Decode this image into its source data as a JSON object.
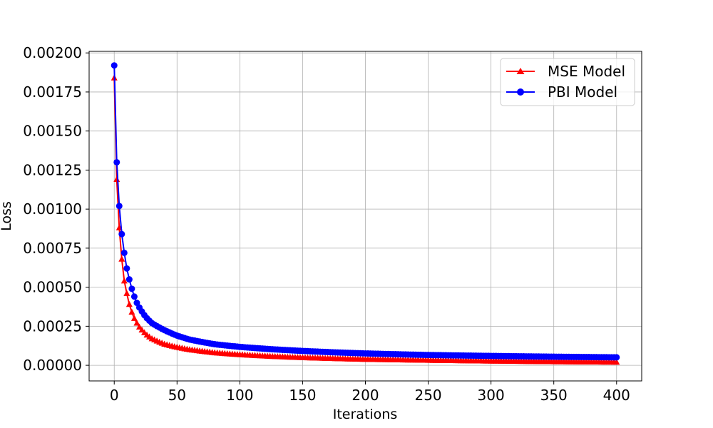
{
  "chart_data": {
    "type": "line",
    "title": "",
    "xlabel": "Iterations",
    "ylabel": "Loss",
    "xlim": [
      -20,
      420
    ],
    "ylim": [
      -0.0001,
      0.00201
    ],
    "x_ticks": [
      0,
      50,
      100,
      150,
      200,
      250,
      300,
      350,
      400
    ],
    "x_tick_labels": [
      "0",
      "50",
      "100",
      "150",
      "200",
      "250",
      "300",
      "350",
      "400"
    ],
    "y_ticks": [
      0,
      0.00025,
      0.0005,
      0.00075,
      0.001,
      0.00125,
      0.0015,
      0.00175,
      0.002
    ],
    "y_tick_labels": [
      "0.00000",
      "0.00025",
      "0.00050",
      "0.00075",
      "0.00100",
      "0.00125",
      "0.00150",
      "0.00175",
      "0.00200"
    ],
    "grid": true,
    "legend_position": "top-right",
    "x_step": 2,
    "series": [
      {
        "name": "MSE Model",
        "color": "#ff0000",
        "marker": "triangle",
        "x": [
          0,
          1,
          2,
          3,
          4,
          5,
          6,
          7,
          8,
          9,
          10,
          12,
          14,
          16,
          18,
          20,
          25,
          30,
          40,
          50,
          60,
          80,
          100,
          125,
          150,
          175,
          200,
          250,
          300,
          350,
          400
        ],
        "y": [
          0.00184,
          0.00145,
          0.00119,
          0.00102,
          0.00088,
          0.00077,
          0.00068,
          0.0006,
          0.00054,
          0.0005,
          0.00046,
          0.00039,
          0.00034,
          0.0003,
          0.00027,
          0.000245,
          0.0002,
          0.00017,
          0.000135,
          0.000115,
          0.0001,
          8e-05,
          6.8e-05,
          5.7e-05,
          4.9e-05,
          4.3e-05,
          3.8e-05,
          3.2e-05,
          2.7e-05,
          2.3e-05,
          2e-05
        ]
      },
      {
        "name": "PBI Model",
        "color": "#0000ff",
        "marker": "circle",
        "x": [
          0,
          1,
          2,
          3,
          4,
          5,
          6,
          7,
          8,
          9,
          10,
          12,
          14,
          16,
          18,
          20,
          25,
          30,
          40,
          50,
          60,
          80,
          100,
          125,
          150,
          175,
          200,
          250,
          300,
          350,
          400
        ],
        "y": [
          0.00192,
          0.00153,
          0.0013,
          0.00114,
          0.00102,
          0.00092,
          0.00084,
          0.00077,
          0.00072,
          0.00067,
          0.00062,
          0.00055,
          0.00049,
          0.00044,
          0.0004,
          0.00037,
          0.00031,
          0.00027,
          0.000225,
          0.00019,
          0.000165,
          0.000135,
          0.000118,
          0.000103,
          9.2e-05,
          8.3e-05,
          7.6e-05,
          6.6e-05,
          6e-05,
          5.5e-05,
          5.1e-05
        ]
      }
    ]
  }
}
